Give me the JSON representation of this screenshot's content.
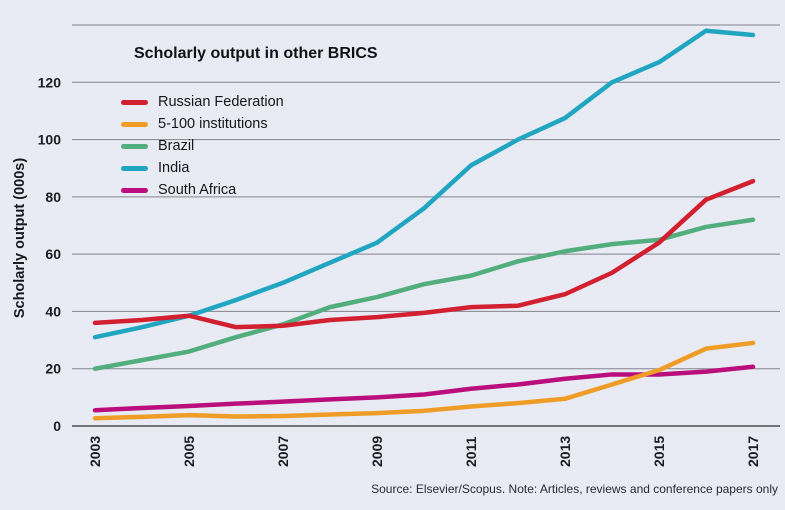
{
  "title": "Scholarly output in other BRICS",
  "y_axis_title": "Scholarly output (000s)",
  "source_note": "Source: Elsevier/Scopus. Note: Articles, reviews and conference papers only",
  "colors": {
    "background": "#e8eaf4",
    "gridline": "#83838c",
    "axis_line": "#4d4d55",
    "tick_text": "#1c1c22",
    "russia_red": "#d22030",
    "five_100_orange": "#f09d28",
    "brazil_green": "#53ae7d",
    "india_teal": "#21a6c2",
    "south_africa_magenta": "#bb0e7d"
  },
  "chart_data": {
    "type": "line",
    "title": "Scholarly output in other BRICS",
    "xlabel": "",
    "ylabel": "Scholarly output (000s)",
    "ylim": [
      0,
      140
    ],
    "y_ticks": [
      0,
      20,
      40,
      60,
      80,
      100,
      120
    ],
    "y_gridlines": [
      0,
      20,
      40,
      60,
      80,
      100,
      120,
      140
    ],
    "x": [
      2003,
      2004,
      2005,
      2006,
      2007,
      2008,
      2009,
      2010,
      2011,
      2012,
      2013,
      2014,
      2015,
      2016,
      2017
    ],
    "x_tick_labels": [
      "2003",
      "2005",
      "2007",
      "2009",
      "2011",
      "2013",
      "2015",
      "2017"
    ],
    "grid": "horizontal-only",
    "legend_position": "top-left",
    "series": [
      {
        "name": "Russian Federation",
        "color": "#d22030",
        "values": [
          36,
          37,
          38.5,
          34.5,
          35,
          37,
          38,
          39.5,
          41.5,
          42,
          46,
          53.5,
          64,
          79,
          85.5
        ]
      },
      {
        "name": "5-100 institutions",
        "color": "#f09d28",
        "values": [
          2.7,
          3.2,
          3.8,
          3.3,
          3.5,
          4,
          4.5,
          5.3,
          6.8,
          8,
          9.5,
          14.5,
          19.5,
          27,
          29
        ]
      },
      {
        "name": "Brazil",
        "color": "#53ae7d",
        "values": [
          20,
          23,
          26,
          31,
          35.5,
          41.5,
          45,
          49.5,
          52.5,
          57.5,
          61,
          63.5,
          65,
          69.5,
          72
        ]
      },
      {
        "name": "India",
        "color": "#21a6c2",
        "values": [
          31,
          34.5,
          38.5,
          44,
          50,
          57,
          64,
          76,
          91,
          100,
          107.5,
          120,
          127,
          138,
          136.5
        ]
      },
      {
        "name": "South Africa",
        "color": "#bb0e7d",
        "values": [
          5.5,
          6.3,
          7,
          7.8,
          8.5,
          9.3,
          10,
          11,
          13,
          14.5,
          16.5,
          18,
          18,
          19,
          20.7
        ]
      }
    ]
  }
}
